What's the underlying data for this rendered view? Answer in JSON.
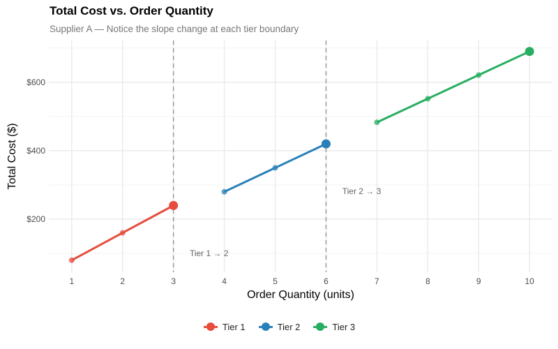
{
  "chart_data": {
    "type": "line",
    "title": "Total Cost vs. Order Quantity",
    "subtitle": "Supplier A — Notice the slope change at each tier boundary",
    "xlabel": "Order Quantity (units)",
    "ylabel": "Total Cost ($)",
    "xlim": [
      0.55,
      10.45
    ],
    "ylim": [
      45,
      722
    ],
    "x_ticks": [
      1,
      2,
      3,
      4,
      5,
      6,
      7,
      8,
      9,
      10
    ],
    "y_ticks": [
      200,
      400,
      600
    ],
    "y_tick_labels": [
      "$200",
      "$400",
      "$600"
    ],
    "grid": true,
    "legend_position": "bottom",
    "series": [
      {
        "name": "Tier 1",
        "color": "#E74C3C",
        "x": [
          1,
          2,
          3
        ],
        "y": [
          80,
          160,
          240
        ]
      },
      {
        "name": "Tier 2",
        "color": "#2980B9",
        "x": [
          4,
          5,
          6
        ],
        "y": [
          280,
          350,
          420
        ]
      },
      {
        "name": "Tier 3",
        "color": "#27AE60",
        "x": [
          7,
          8,
          9,
          10
        ],
        "y": [
          483,
          552,
          621,
          690
        ]
      }
    ],
    "boundaries": [
      3,
      6
    ],
    "annotations": [
      {
        "text": "Tier 1 → 2",
        "x": 3.7,
        "y": 100
      },
      {
        "text": "Tier 2 → 3",
        "x": 6.7,
        "y": 282
      }
    ]
  }
}
